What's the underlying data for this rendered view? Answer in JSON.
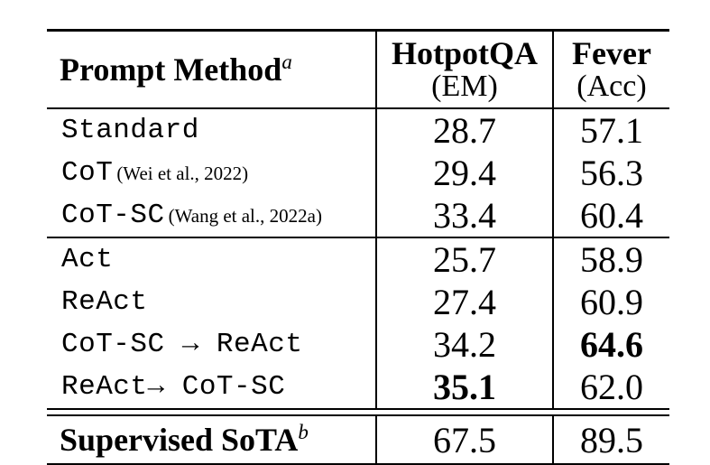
{
  "page": {
    "background": "#ffffff",
    "text_color": "#000000"
  },
  "table": {
    "header": {
      "method_label": "Prompt Method",
      "method_sup": "a",
      "hotpotqa_line1": "HotpotQA",
      "hotpotqa_line2": "(EM)",
      "fever_line1": "Fever",
      "fever_line2": "(Acc)"
    },
    "group1": {
      "rows": [
        {
          "method": "Standard",
          "cite": "",
          "hotpotqa": "28.7",
          "fever": "57.1"
        },
        {
          "method": "CoT",
          "cite": "(Wei et al., 2022)",
          "hotpotqa": "29.4",
          "fever": "56.3"
        },
        {
          "method": "CoT-SC",
          "cite": "(Wang et al., 2022a)",
          "hotpotqa": "33.4",
          "fever": "60.4"
        }
      ]
    },
    "group2": {
      "rows": [
        {
          "method": "Act",
          "cite": "",
          "hotpotqa": "25.7",
          "fever": "58.9"
        },
        {
          "method": "ReAct",
          "cite": "",
          "hotpotqa": "27.4",
          "fever": "60.9"
        },
        {
          "method": "CoT-SC → ReAct",
          "cite": "",
          "hotpotqa": "34.2",
          "fever": "64.6"
        },
        {
          "method": "ReAct→ CoT-SC",
          "cite": "",
          "hotpotqa": "35.1",
          "fever": "62.0"
        }
      ]
    },
    "footer": {
      "label": "Supervised SoTA",
      "sup": "b",
      "hotpotqa": "67.5",
      "fever": "89.5"
    }
  }
}
